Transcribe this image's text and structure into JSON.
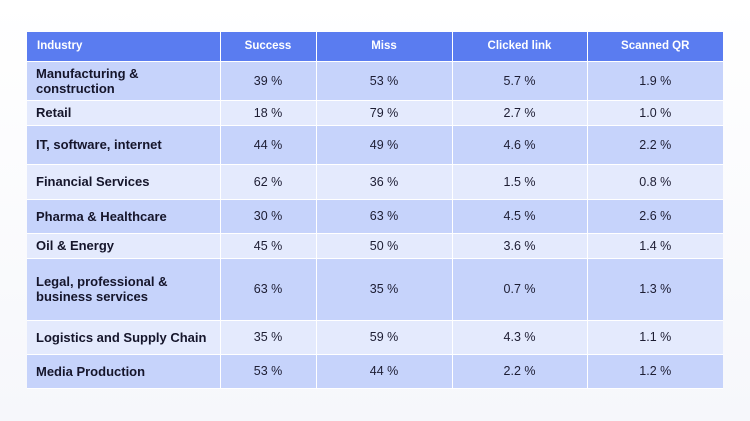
{
  "table": {
    "headers": [
      "Industry",
      "Success",
      "Miss",
      "Clicked link",
      "Scanned QR"
    ],
    "rows": [
      {
        "industry": "Manufacturing & construction",
        "success": "39 %",
        "miss": "53 %",
        "clicked": "5.7 %",
        "scanned": "1.9 %"
      },
      {
        "industry": "Retail",
        "success": "18 %",
        "miss": "79 %",
        "clicked": "2.7 %",
        "scanned": "1.0 %"
      },
      {
        "industry": "IT, software, internet",
        "success": "44 %",
        "miss": "49 %",
        "clicked": "4.6 %",
        "scanned": "2.2 %"
      },
      {
        "industry": "Financial Services",
        "success": "62 %",
        "miss": "36 %",
        "clicked": "1.5 %",
        "scanned": "0.8 %"
      },
      {
        "industry": "Pharma & Healthcare",
        "success": "30 %",
        "miss": "63 %",
        "clicked": "4.5 %",
        "scanned": "2.6 %"
      },
      {
        "industry": "Oil & Energy",
        "success": "45 %",
        "miss": "50 %",
        "clicked": "3.6 %",
        "scanned": "1.4 %"
      },
      {
        "industry": "Legal, professional & business services",
        "success": "63 %",
        "miss": "35 %",
        "clicked": "0.7 %",
        "scanned": "1.3 %"
      },
      {
        "industry": "Logistics and Supply Chain",
        "success": "35 %",
        "miss": "59 %",
        "clicked": "4.3 %",
        "scanned": "1.1 %"
      },
      {
        "industry": "Media Production",
        "success": "53 %",
        "miss": "44 %",
        "clicked": "2.2 %",
        "scanned": "1.2 %"
      }
    ]
  },
  "colors": {
    "header": "#5a7cf0",
    "row_dark": "#c6d3fb",
    "row_light": "#e4eafd"
  }
}
